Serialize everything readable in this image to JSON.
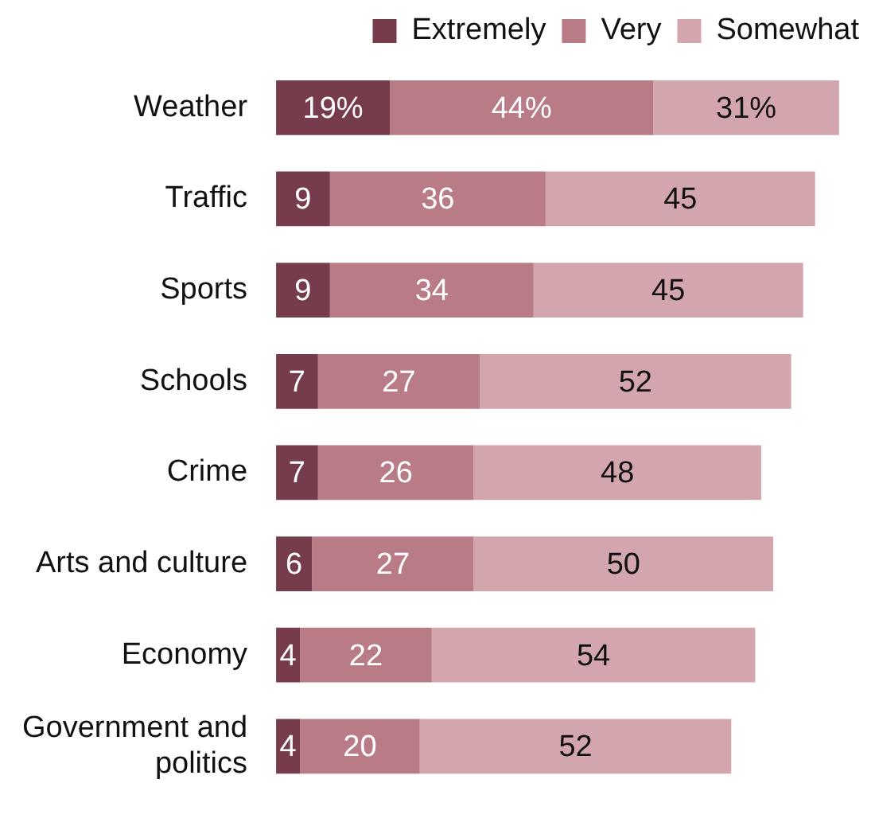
{
  "chart_data": {
    "type": "bar",
    "orientation": "horizontal",
    "stacked": true,
    "legend": "top",
    "categories": [
      "Weather",
      "Traffic",
      "Sports",
      "Schools",
      "Crime",
      "Arts and culture",
      "Economy",
      "Government and politics"
    ],
    "series": [
      {
        "name": "Extremely",
        "color": "#763c4b",
        "values": [
          19,
          9,
          9,
          7,
          7,
          6,
          4,
          4
        ],
        "value_labels": [
          "19%",
          "9",
          "9",
          "7",
          "7",
          "6",
          "4",
          "4"
        ]
      },
      {
        "name": "Very",
        "color": "#b97b85",
        "values": [
          44,
          36,
          34,
          27,
          26,
          27,
          22,
          20
        ],
        "value_labels": [
          "44%",
          "36",
          "34",
          "27",
          "26",
          "27",
          "22",
          "20"
        ]
      },
      {
        "name": "Somewhat",
        "color": "#d3a6ae",
        "values": [
          31,
          45,
          45,
          52,
          48,
          50,
          54,
          52
        ],
        "value_labels": [
          "31%",
          "45",
          "45",
          "52",
          "48",
          "50",
          "54",
          "52"
        ]
      }
    ]
  }
}
